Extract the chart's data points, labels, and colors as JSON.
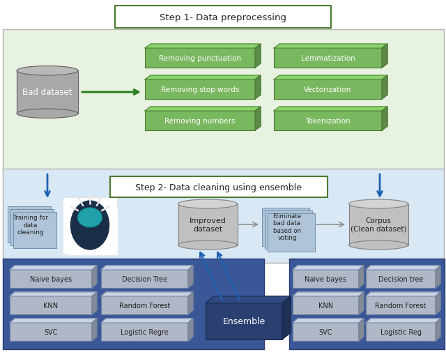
{
  "title_step1": "Step 1- Data preprocessing",
  "title_step2": "Step 2- Data cleaning using ensemble",
  "step1_bg": "#e8f2e0",
  "step2_bg": "#d8e8f5",
  "bottom_bg": "#3a5898",
  "bottom_bg2": "#4060a8",
  "green_box_face": "#7ab860",
  "green_box_edge": "#4a7a30",
  "gray_box_face": "#b0b8c8",
  "gray_box_edge": "#7080a0",
  "cyl_face": "#b8b8b8",
  "cyl_edge": "#808080",
  "cyl_dark": "#909090",
  "ensemble_face": "#2a4070",
  "ensemble_edge": "#1a2850",
  "arrow_green": "#2a8020",
  "arrow_blue": "#2060b0",
  "arrow_gray": "#909090",
  "step1_left_boxes": [
    "Removing punctuation",
    "Removing stop words",
    "Removing numbers"
  ],
  "step1_right_boxes": [
    "Lemmatization",
    "Vectorization",
    "Tokenization"
  ],
  "left_col1": [
    "Naive bayes",
    "KNN",
    "SVC"
  ],
  "left_col2": [
    "Decision Tree",
    "Random Forest",
    "Logistic Regre"
  ],
  "right_col1": [
    "Naive bayes",
    "KNN",
    "SVC"
  ],
  "right_col2": [
    "Decision tree",
    "Random Forest",
    "Logistic Reg"
  ]
}
